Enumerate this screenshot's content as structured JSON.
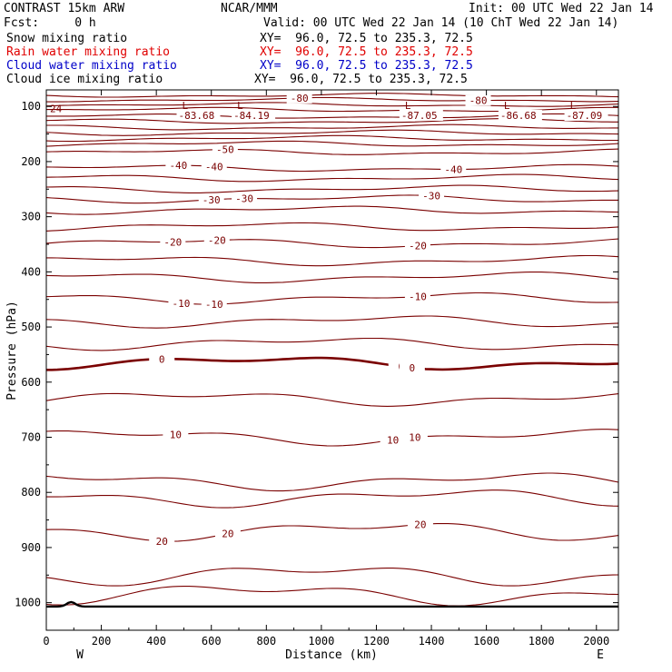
{
  "header": {
    "model": "CONTRAST 15km ARW",
    "org": "NCAR/MMM",
    "init": "Init: 00 UTC Wed 22 Jan 14",
    "fcst": "Fcst:     0 h",
    "valid": "Valid: 00 UTC Wed 22 Jan 14 (10 ChT Wed 22 Jan 14)"
  },
  "legend": [
    {
      "label": "Snow mixing ratio",
      "xy": "XY=  96.0, 72.5 to 235.3, 72.5",
      "color": "#000000"
    },
    {
      "label": "Rain water mixing ratio",
      "xy": "XY=  96.0, 72.5 to 235.3, 72.5",
      "color": "#e00000"
    },
    {
      "label": "Cloud water mixing ratio",
      "xy": "XY=  96.0, 72.5 to 235.3, 72.5",
      "color": "#0000c8"
    },
    {
      "label": "Cloud ice mixing ratio",
      "xy": "XY=  96.0, 72.5 to 235.3, 72.5",
      "color": "#000000"
    }
  ],
  "colors": {
    "contour": "#7a0000",
    "ground": "#000000"
  },
  "chart_data": {
    "type": "contour",
    "xlabel": "Distance (km)",
    "ylabel": "Pressure (hPa)",
    "xlim": [
      0,
      2080
    ],
    "ylim": [
      1050,
      70
    ],
    "xticks": [
      0,
      200,
      400,
      600,
      800,
      1000,
      1200,
      1400,
      1600,
      1800,
      2000
    ],
    "yticks": [
      100,
      200,
      300,
      400,
      500,
      600,
      700,
      800,
      900,
      1000
    ],
    "end_labels": {
      "left": "W",
      "right": "E"
    },
    "contour_levels": [
      {
        "p": 80
      },
      {
        "p": 88,
        "label": "-80",
        "labels_at": [
          920,
          1570
        ]
      },
      {
        "p": 97
      },
      {
        "p": 106
      },
      {
        "p": 118
      },
      {
        "p": 127
      },
      {
        "p": 138
      },
      {
        "p": 148
      },
      {
        "p": 158
      },
      {
        "p": 168
      },
      {
        "p": 183,
        "label": "-50",
        "labels_at": [
          650
        ]
      },
      {
        "p": 212,
        "label": "-40",
        "labels_at": [
          480,
          610,
          1480
        ]
      },
      {
        "p": 230
      },
      {
        "p": 250
      },
      {
        "p": 268,
        "label": "-30",
        "labels_at": [
          600,
          720,
          1400
        ]
      },
      {
        "p": 288
      },
      {
        "p": 318
      },
      {
        "p": 348,
        "label": "-20",
        "labels_at": [
          460,
          620,
          1350
        ]
      },
      {
        "p": 380
      },
      {
        "p": 410
      },
      {
        "p": 448,
        "label": "-10",
        "labels_at": [
          490,
          610,
          1350
        ]
      },
      {
        "p": 490
      },
      {
        "p": 530
      },
      {
        "p": 565,
        "label": "0",
        "labels_at": [
          420,
          1290,
          1330
        ],
        "bold": true
      },
      {
        "p": 630
      },
      {
        "p": 700,
        "label": "10",
        "labels_at": [
          470,
          1260,
          1340
        ]
      },
      {
        "p": 780
      },
      {
        "p": 810
      },
      {
        "p": 870,
        "label": "20",
        "labels_at": [
          420,
          660,
          1360
        ]
      },
      {
        "p": 950
      },
      {
        "p": 985
      }
    ],
    "extrema": [
      {
        "type": "L",
        "x": 520,
        "value": "-83.68"
      },
      {
        "type": "L",
        "x": 720,
        "value": "-84.19"
      },
      {
        "type": "L",
        "x": 1330,
        "value": "-87.05"
      },
      {
        "type": "L",
        "x": 1690,
        "value": "-86.68"
      },
      {
        "type": "L",
        "x": 1930,
        "value": "-87.09"
      }
    ],
    "edge_label": {
      "text": "24",
      "p": 104
    }
  }
}
